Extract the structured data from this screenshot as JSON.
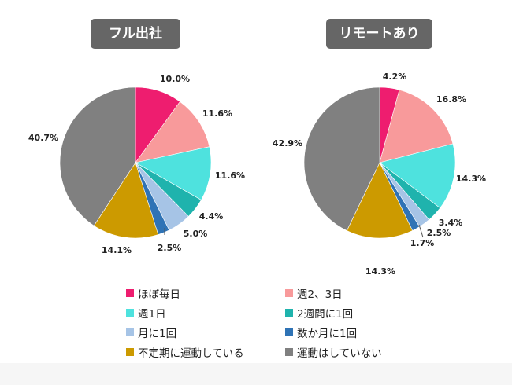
{
  "chart_data": {
    "type": "pie",
    "categories": [
      "ほぼ毎日",
      "週2、3日",
      "週1日",
      "2週間に1回",
      "月に1回",
      "数か月に1回",
      "不定期に運動している",
      "運動はしていない"
    ],
    "colors": [
      "#ee1d6f",
      "#f89a9b",
      "#4ee2de",
      "#1fb3ad",
      "#a6c4e6",
      "#2f73b5",
      "#cc9a00",
      "#808080"
    ],
    "series": [
      {
        "name": "フル出社",
        "values": [
          10.0,
          11.6,
          11.6,
          4.4,
          5.0,
          2.5,
          14.1,
          40.7
        ],
        "labels": [
          "10.0%",
          "11.6%",
          "11.6%",
          "4.4%",
          "5.0%",
          "2.5%",
          "14.1%",
          "40.7%"
        ]
      },
      {
        "name": "リモートあり",
        "values": [
          4.2,
          16.8,
          14.3,
          3.4,
          2.5,
          1.7,
          14.3,
          42.9
        ],
        "labels": [
          "4.2%",
          "16.8%",
          "14.3%",
          "3.4%",
          "2.5%",
          "1.7%",
          "14.3%",
          "42.9%"
        ]
      }
    ],
    "legend_position": "bottom"
  }
}
